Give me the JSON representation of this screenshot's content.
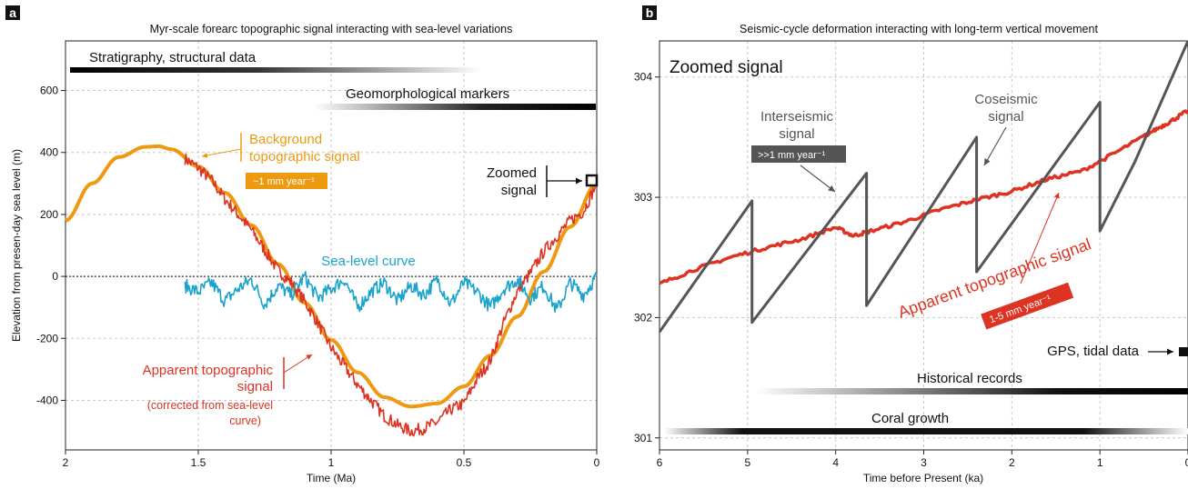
{
  "colors": {
    "orange": "#ee9a10",
    "red": "#dd3323",
    "blue": "#1aa3cc",
    "gray": "#555555",
    "black": "#111111",
    "grid": "#c8c8c8"
  },
  "chart_data": [
    {
      "panel": "a",
      "type": "line",
      "title": "Myr-scale forearc topographic signal interacting with sea-level variations",
      "xlabel": "Time (Ma)",
      "ylabel": "Elevation from presen-day sea level (m)",
      "xlim": [
        2,
        0
      ],
      "ylim": [
        -560,
        760
      ],
      "xticks": [
        2,
        1.5,
        1,
        0.5,
        0
      ],
      "xtick_labels": [
        "2",
        "1.5",
        "1",
        "0.5",
        "0"
      ],
      "yticks": [
        -400,
        -200,
        0,
        200,
        400,
        600
      ],
      "ytick_labels": [
        "-400",
        "-200",
        "0",
        "200",
        "400",
        "600"
      ],
      "grid": true,
      "zero_line": "dotted",
      "series": [
        {
          "name": "Background topographic signal",
          "color_key": "orange",
          "x": [
            2.0,
            1.9,
            1.8,
            1.7,
            1.65,
            1.6,
            1.5,
            1.4,
            1.3,
            1.2,
            1.1,
            1.0,
            0.9,
            0.8,
            0.7,
            0.6,
            0.5,
            0.4,
            0.3,
            0.2,
            0.1,
            0.0
          ],
          "y": [
            180,
            300,
            385,
            418,
            420,
            410,
            355,
            270,
            165,
            40,
            -85,
            -205,
            -310,
            -390,
            -420,
            -410,
            -355,
            -255,
            -130,
            15,
            160,
            300
          ]
        },
        {
          "name": "Apparent topographic signal",
          "color_key": "red",
          "x": [
            1.55,
            1.5,
            1.45,
            1.4,
            1.35,
            1.3,
            1.25,
            1.2,
            1.15,
            1.1,
            1.05,
            1.0,
            0.95,
            0.9,
            0.85,
            0.8,
            0.75,
            0.7,
            0.65,
            0.6,
            0.55,
            0.5,
            0.45,
            0.4,
            0.35,
            0.3,
            0.25,
            0.2,
            0.15,
            0.1,
            0.05,
            0.0
          ],
          "y": [
            380,
            350,
            310,
            250,
            200,
            150,
            85,
            20,
            -20,
            -80,
            -150,
            -230,
            -290,
            -350,
            -400,
            -450,
            -480,
            -500,
            -490,
            -470,
            -430,
            -410,
            -330,
            -270,
            -150,
            -50,
            10,
            80,
            130,
            180,
            210,
            300
          ]
        },
        {
          "name": "Sea-level curve",
          "color_key": "blue",
          "x": [
            1.55,
            1.5,
            1.45,
            1.4,
            1.35,
            1.3,
            1.25,
            1.2,
            1.15,
            1.1,
            1.05,
            1.0,
            0.95,
            0.9,
            0.85,
            0.8,
            0.75,
            0.7,
            0.65,
            0.6,
            0.55,
            0.5,
            0.45,
            0.4,
            0.35,
            0.3,
            0.25,
            0.2,
            0.15,
            0.1,
            0.05,
            0.0
          ],
          "y": [
            -30,
            -50,
            -20,
            -80,
            -40,
            -10,
            -90,
            -30,
            -60,
            0,
            -70,
            -40,
            -10,
            -100,
            -50,
            -20,
            -80,
            -30,
            -60,
            -10,
            -90,
            -20,
            -50,
            -100,
            -40,
            -10,
            -70,
            -30,
            -110,
            -20,
            -60,
            0
          ]
        }
      ],
      "bars": [
        {
          "label": "Stratigraphy, structural data",
          "from": 2.0,
          "to": 0.45,
          "y": 665,
          "fade": "toward-present"
        },
        {
          "label": "Geomorphological markers",
          "from": 1.05,
          "to": 0.0,
          "y": 545,
          "fade": "toward-past"
        }
      ],
      "annotations": {
        "background_label": "Background topographic signal",
        "background_rate": "~1 mm year⁻¹",
        "sealevel_label": "Sea-level curve",
        "apparent_label_1": "Apparent topographic",
        "apparent_label_2": "signal",
        "apparent_note_1": "(corrected from sea-level",
        "apparent_note_2": "curve)",
        "zoomed_1": "Zoomed",
        "zoomed_2": "signal"
      }
    },
    {
      "panel": "b",
      "type": "line",
      "title": "Seismic-cycle deformation interacting with long-term vertical movement",
      "xlabel": "Time before Present (ka)",
      "ylabel": "",
      "xlim": [
        6,
        0
      ],
      "ylim": [
        300.9,
        304.3
      ],
      "xticks": [
        6,
        5,
        4,
        3,
        2,
        1,
        0
      ],
      "xtick_labels": [
        "6",
        "5",
        "4",
        "3",
        "2",
        "1",
        "0"
      ],
      "yticks": [
        301,
        302,
        303,
        304
      ],
      "ytick_labels": [
        "301",
        "302",
        "303",
        "304"
      ],
      "grid": true,
      "series": [
        {
          "name": "Apparent topographic signal",
          "color_key": "red",
          "x": [
            6.0,
            5.6,
            5.2,
            4.8,
            4.4,
            4.0,
            3.8,
            3.6,
            3.2,
            2.8,
            2.4,
            2.0,
            1.6,
            1.2,
            0.8,
            0.4,
            0.2,
            0.0
          ],
          "y": [
            302.28,
            302.4,
            302.5,
            302.58,
            302.65,
            302.75,
            302.68,
            302.72,
            302.8,
            302.9,
            302.98,
            303.05,
            303.15,
            303.22,
            303.38,
            303.55,
            303.63,
            303.72
          ]
        },
        {
          "name": "Seismic-cycle signal",
          "color_key": "gray",
          "x": [
            6.0,
            4.95,
            4.95,
            3.65,
            3.65,
            2.4,
            2.4,
            1.0,
            1.0,
            0.6,
            0.0
          ],
          "y": [
            301.88,
            302.97,
            301.96,
            303.2,
            302.1,
            303.5,
            302.38,
            303.79,
            302.72,
            303.3,
            304.3
          ]
        }
      ],
      "bars": [
        {
          "label": "Historical records",
          "from": 5.0,
          "to": 0.0,
          "y": 301.3,
          "fade": "toward-past"
        },
        {
          "label": "Coral growth",
          "from": 6.0,
          "to": 0.0,
          "y": 300.98,
          "fade": "toward-both"
        }
      ],
      "annotations": {
        "zoomed": "Zoomed signal",
        "interseismic_1": "Interseismic",
        "interseismic_2": "signal",
        "interseismic_rate": ">>1 mm year⁻¹",
        "coseismic_1": "Coseismic",
        "coseismic_2": "signal",
        "apparent": "Apparent topographic signal",
        "apparent_rate": "1-5 mm year⁻¹",
        "gps": "GPS, tidal data"
      }
    }
  ],
  "panel_letters": [
    "a",
    "b"
  ]
}
